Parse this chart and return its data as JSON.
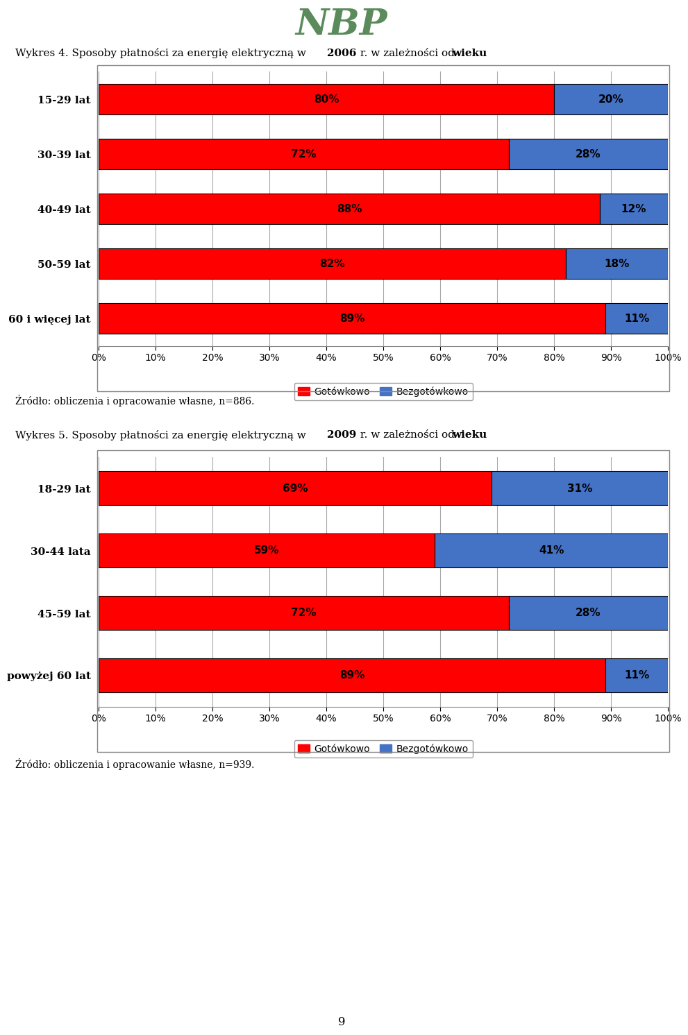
{
  "nbp_title": "NBP",
  "chart1_title_parts": [
    {
      "text": "Wykres 4. Sposoby płatności za energię elektryczną w ",
      "bold": false
    },
    {
      "text": "2006",
      "bold": true
    },
    {
      "text": " r. w zależności od ",
      "bold": false
    },
    {
      "text": "wieku",
      "bold": true
    }
  ],
  "chart1_categories": [
    "15-29 lat",
    "30-39 lat",
    "40-49 lat",
    "50-59 lat",
    "60 i więcej lat"
  ],
  "chart1_gotowkowo": [
    80,
    72,
    88,
    82,
    89
  ],
  "chart1_bezgotowkowo": [
    20,
    28,
    12,
    18,
    11
  ],
  "chart1_source": "Źródło: obliczenia i opracowanie własne, n=886.",
  "chart2_title_parts": [
    {
      "text": "Wykres 5. Sposoby płatności za energię elektryczną w ",
      "bold": false
    },
    {
      "text": "2009",
      "bold": true
    },
    {
      "text": " r. w zależności od ",
      "bold": false
    },
    {
      "text": "wieku",
      "bold": true
    }
  ],
  "chart2_categories": [
    "18-29 lat",
    "30-44 lata",
    "45-59 lat",
    "powyżej 60 lat"
  ],
  "chart2_gotowkowo": [
    69,
    59,
    72,
    89
  ],
  "chart2_bezgotowkowo": [
    31,
    41,
    28,
    11
  ],
  "chart2_source": "Źródło: obliczenia i opracowanie własne, n=939.",
  "color_red": "#FF0000",
  "color_blue": "#4472C4",
  "color_border": "#000000",
  "legend_gotowkowo": "Gotówkowo",
  "legend_bezgotowkowo": "Bezgotówkowo",
  "page_number": "9",
  "background_color": "#FFFFFF",
  "grid_color": "#AAAAAA",
  "bar_height": 0.55,
  "label_fontsize": 11,
  "tick_fontsize": 10,
  "category_fontsize": 11,
  "title_fontsize": 11,
  "nbp_color": "#5B8B5B"
}
